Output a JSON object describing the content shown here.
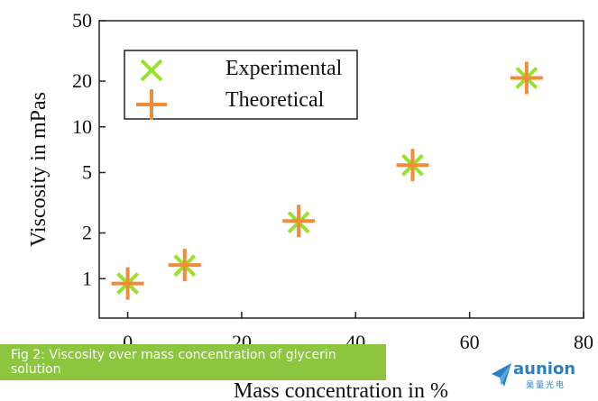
{
  "chart_data": {
    "type": "scatter",
    "xlabel": "Mass concentration in %",
    "ylabel": "Viscosity in mPas",
    "xlim": [
      -5,
      80
    ],
    "ylim": [
      0.55,
      50
    ],
    "yscale": "log",
    "xticks": [
      0,
      20,
      40,
      60,
      80
    ],
    "yticks": [
      1,
      2,
      5,
      10,
      20,
      50
    ],
    "grid": false,
    "legend_position": "top-left",
    "series": [
      {
        "name": "Experimental",
        "marker": "x",
        "color": "#99e22a",
        "x": [
          0,
          10,
          30,
          50,
          70
        ],
        "y": [
          0.93,
          1.22,
          2.35,
          5.6,
          21
        ]
      },
      {
        "name": "Theoretical",
        "marker": "+",
        "color": "#f08c3a",
        "x": [
          0,
          10,
          30,
          50,
          70
        ],
        "y": [
          0.93,
          1.23,
          2.4,
          5.6,
          21
        ]
      }
    ]
  },
  "caption": "Fig 2: Viscosity over mass concentration of glycerin solution",
  "brand": {
    "name": "aunion",
    "subtitle": "昊量光电",
    "icon": "paper-plane-icon",
    "color": "#2a7fc4"
  },
  "caption_color": "#8cc63f"
}
